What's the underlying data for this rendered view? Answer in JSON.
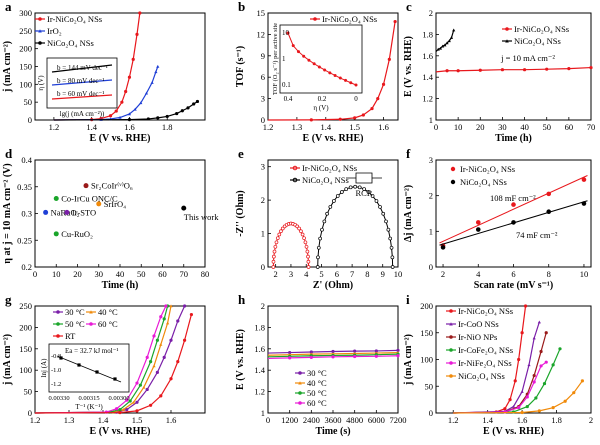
{
  "colors": {
    "red": "#e8171c",
    "blue": "#1f3fd6",
    "black": "#000000",
    "green": "#1aa52a",
    "purple": "#7a1fa8",
    "orange": "#f08a0a",
    "magenta": "#e81ad6",
    "darkred": "#9a1a1a"
  },
  "chart_data": [
    {
      "panel": "a",
      "type": "line",
      "xlabel": "E (V vs. RHE)",
      "ylabel": "j (mA cm⁻²)",
      "xlim": [
        1.1,
        2.0
      ],
      "ylim": [
        0,
        300
      ],
      "xticks": [
        1.2,
        1.4,
        1.6,
        1.8
      ],
      "yticks": [
        0,
        50,
        100,
        150,
        200,
        250,
        300
      ],
      "legend_position": "top-left",
      "series": [
        {
          "name": "Ir-NiCo₂O₄ NSs",
          "color": "red",
          "x": [
            1.2,
            1.4,
            1.45,
            1.5,
            1.53,
            1.56,
            1.58,
            1.6,
            1.62,
            1.64,
            1.655
          ],
          "y": [
            0,
            1,
            4,
            12,
            25,
            50,
            80,
            120,
            170,
            240,
            300
          ]
        },
        {
          "name": "IrO₂",
          "color": "blue",
          "x": [
            1.2,
            1.45,
            1.5,
            1.55,
            1.6,
            1.63,
            1.66,
            1.69,
            1.72,
            1.74,
            1.75
          ],
          "y": [
            0,
            1,
            3,
            7,
            17,
            30,
            48,
            75,
            105,
            135,
            150
          ]
        },
        {
          "name": "NiCo₂O₄ NSs",
          "color": "black",
          "x": [
            1.2,
            1.6,
            1.7,
            1.75,
            1.8,
            1.85,
            1.88,
            1.91,
            1.94,
            1.96
          ],
          "y": [
            0,
            1,
            3,
            6,
            10,
            18,
            26,
            34,
            45,
            52
          ]
        }
      ],
      "inset": {
        "xlabel": "lg(j (mA cm⁻²))",
        "ylabel": "η (V)",
        "annotations": [
          "b = 144 mV dec⁻¹",
          "b = 80 mV dec⁻¹",
          "b = 60 mV dec⁻¹"
        ]
      }
    },
    {
      "panel": "b",
      "type": "line",
      "xlabel": "E (V vs. RHE)",
      "ylabel": "TOF (s⁻¹)",
      "xlim": [
        1.2,
        1.65
      ],
      "ylim": [
        0,
        15
      ],
      "xticks": [
        1.2,
        1.3,
        1.4,
        1.5,
        1.6
      ],
      "yticks": [
        0,
        3,
        6,
        9,
        12,
        15
      ],
      "legend_position": "top-center",
      "series": [
        {
          "name": "Ir-NiCo₂O₄ NSs",
          "color": "red",
          "x": [
            1.2,
            1.35,
            1.45,
            1.5,
            1.53,
            1.56,
            1.58,
            1.6,
            1.62,
            1.64
          ],
          "y": [
            0,
            0.02,
            0.1,
            0.3,
            0.7,
            1.6,
            3,
            5,
            8.5,
            13.8
          ]
        }
      ],
      "inset": {
        "xlabel": "η (V)",
        "ylabel": "TOF (O₂ s⁻¹) per active site",
        "scale": "log",
        "xlim": [
          0.45,
          -0.02
        ],
        "xticks": [
          0.4,
          0.2,
          0.0
        ],
        "yticks": [
          "10",
          "1",
          "0.1"
        ]
      }
    },
    {
      "panel": "c",
      "type": "line",
      "xlabel": "Time (h)",
      "ylabel": "E (V vs. RHE)",
      "xlim": [
        0,
        70
      ],
      "ylim": [
        1.0,
        2.0
      ],
      "xticks": [
        0,
        10,
        20,
        30,
        40,
        50,
        60,
        70
      ],
      "yticks": [
        1.0,
        1.2,
        1.4,
        1.6,
        1.8,
        2.0
      ],
      "legend_position": "top-right",
      "annotation": "j = 10 mA cm⁻²",
      "series": [
        {
          "name": "Ir-NiCo₂O₄ NSs",
          "color": "red",
          "x": [
            0,
            5,
            10,
            20,
            30,
            40,
            50,
            60,
            70
          ],
          "y": [
            1.45,
            1.46,
            1.46,
            1.465,
            1.47,
            1.47,
            1.475,
            1.48,
            1.49
          ]
        },
        {
          "name": "NiCo₂O₄ NSs",
          "color": "black",
          "x": [
            0,
            1,
            2,
            3,
            4,
            5,
            6,
            7,
            8
          ],
          "y": [
            1.64,
            1.66,
            1.67,
            1.69,
            1.7,
            1.72,
            1.74,
            1.77,
            1.84
          ]
        }
      ]
    },
    {
      "panel": "d",
      "type": "scatter",
      "xlabel": "Time (h)",
      "ylabel": "η at j = 10 mA cm⁻² (V)",
      "xlim": [
        0,
        80
      ],
      "ylim": [
        0.2,
        0.4
      ],
      "xticks": [
        0,
        10,
        20,
        30,
        40,
        50,
        60,
        70,
        80
      ],
      "yticks": [
        0.2,
        0.25,
        0.3,
        0.35,
        0.4
      ],
      "points": [
        {
          "label": "Sr₂CoIr⁽ᵛ⁾O₆",
          "x": 24,
          "y": 0.352,
          "color": "darkred"
        },
        {
          "label": "Co-IrCu ONC/C",
          "x": 10,
          "y": 0.328,
          "color": "green"
        },
        {
          "label": "SrIrO₄",
          "x": 30,
          "y": 0.318,
          "color": "orange"
        },
        {
          "label": "NaRuO₂",
          "x": 5,
          "y": 0.302,
          "color": "blue"
        },
        {
          "label": "Ir-STO",
          "x": 15,
          "y": 0.302,
          "color": "purple"
        },
        {
          "label": "This work",
          "x": 70,
          "y": 0.31,
          "color": "black"
        },
        {
          "label": "Cu-RuO₂",
          "x": 10,
          "y": 0.262,
          "color": "green"
        }
      ]
    },
    {
      "panel": "e",
      "type": "scatter",
      "xlabel": "Z' (Ohm)",
      "ylabel": "-Z'' (Ohm)",
      "xlim": [
        1.5,
        10.0
      ],
      "ylim": [
        0,
        3.2
      ],
      "xticks": [
        2,
        3,
        4,
        5,
        6,
        7,
        8,
        9,
        10
      ],
      "yticks": [
        0,
        1,
        2,
        3
      ],
      "legend_position": "top-left",
      "circuit_label": "RCR",
      "series": [
        {
          "name": "Ir-NiCo₂O₄ NSs",
          "color": "red",
          "center": 3.0,
          "radius": 1.15,
          "peak": 1.3
        },
        {
          "name": "NiCo₂O₄ NSs",
          "color": "black",
          "center": 7.2,
          "radius": 2.45,
          "peak": 2.4
        }
      ]
    },
    {
      "panel": "f",
      "type": "scatter",
      "xlabel": "Scan rate (mV s⁻¹)",
      "ylabel": "Δj (mA cm⁻²)",
      "xlim": [
        1.6,
        10.4
      ],
      "ylim": [
        0,
        3.0
      ],
      "xticks": [
        2,
        4,
        6,
        8,
        10
      ],
      "yticks": [
        0,
        1,
        2,
        3
      ],
      "legend_position": "top-left",
      "series": [
        {
          "name": "Ir-NiCo₂O₄ NSs",
          "color": "red",
          "x": [
            2,
            4,
            6,
            8,
            10
          ],
          "y": [
            0.6,
            1.25,
            1.75,
            2.05,
            2.45
          ],
          "slope_label": "108 mF cm⁻²"
        },
        {
          "name": "NiCo₂O₄ NSs",
          "color": "black",
          "x": [
            2,
            4,
            6,
            8,
            10
          ],
          "y": [
            0.55,
            1.05,
            1.25,
            1.55,
            1.78
          ],
          "slope_label": "74 mF cm⁻²"
        }
      ]
    },
    {
      "panel": "g",
      "type": "line",
      "xlabel": "E (V vs. RHE)",
      "ylabel": "j (mA cm⁻²)",
      "xlim": [
        1.2,
        1.7
      ],
      "ylim": [
        0,
        250
      ],
      "xticks": [
        1.2,
        1.3,
        1.4,
        1.5,
        1.6
      ],
      "yticks": [
        0,
        50,
        100,
        150,
        200,
        250
      ],
      "legend_position": "top-left",
      "series": [
        {
          "name": "30 °C",
          "color": "purple",
          "x": [
            1.2,
            1.44,
            1.47,
            1.5,
            1.53,
            1.56,
            1.58,
            1.6,
            1.62,
            1.64
          ],
          "y": [
            0,
            2,
            8,
            25,
            55,
            95,
            130,
            170,
            215,
            250
          ]
        },
        {
          "name": "40 °C",
          "color": "orange",
          "x": [
            1.2,
            1.43,
            1.46,
            1.49,
            1.52,
            1.55,
            1.57,
            1.59,
            1.6
          ],
          "y": [
            0,
            2,
            8,
            25,
            60,
            110,
            160,
            210,
            250
          ]
        },
        {
          "name": "50 °C",
          "color": "green",
          "x": [
            1.2,
            1.42,
            1.45,
            1.48,
            1.51,
            1.54,
            1.56,
            1.58,
            1.59
          ],
          "y": [
            0,
            2,
            8,
            28,
            65,
            120,
            170,
            220,
            250
          ]
        },
        {
          "name": "60 °C",
          "color": "magenta",
          "x": [
            1.2,
            1.41,
            1.44,
            1.47,
            1.5,
            1.53,
            1.55,
            1.57,
            1.585
          ],
          "y": [
            0,
            2,
            10,
            30,
            70,
            130,
            180,
            225,
            250
          ]
        },
        {
          "name": "RT",
          "color": "red",
          "x": [
            1.2,
            1.45,
            1.5,
            1.54,
            1.57,
            1.6,
            1.62,
            1.64,
            1.66
          ],
          "y": [
            0,
            1,
            5,
            18,
            40,
            80,
            120,
            170,
            230
          ]
        }
      ],
      "inset": {
        "xlabel": "T⁻¹ (K⁻¹)",
        "ylabel": "lnj (A)",
        "annotation": "Ea = 32.7 kJ mol⁻¹",
        "xticks": [
          "0.00330",
          "0.00315",
          "0.00300"
        ],
        "yticks": [
          "-0.8",
          "-1.0",
          "-1.2"
        ]
      }
    },
    {
      "panel": "h",
      "type": "line",
      "xlabel": "Time (s)",
      "ylabel": "E (V vs. RHE)",
      "xlim": [
        0,
        7200
      ],
      "ylim": [
        1.0,
        2.0
      ],
      "xticks": [
        0,
        1200,
        2400,
        3600,
        4800,
        6000,
        7200
      ],
      "yticks": [
        1.0,
        1.2,
        1.4,
        1.6,
        1.8,
        2.0
      ],
      "legend_position": "bottom-left",
      "series": [
        {
          "name": "30 °C",
          "color": "purple",
          "x": [
            0,
            1200,
            2400,
            3600,
            4800,
            6000,
            7200
          ],
          "y": [
            1.56,
            1.565,
            1.57,
            1.575,
            1.578,
            1.58,
            1.585
          ]
        },
        {
          "name": "40 °C",
          "color": "orange",
          "x": [
            0,
            1200,
            2400,
            3600,
            4800,
            6000,
            7200
          ],
          "y": [
            1.54,
            1.545,
            1.55,
            1.553,
            1.556,
            1.56,
            1.565
          ]
        },
        {
          "name": "50 °C",
          "color": "green",
          "x": [
            0,
            1200,
            2400,
            3600,
            4800,
            6000,
            7200
          ],
          "y": [
            1.525,
            1.53,
            1.535,
            1.538,
            1.54,
            1.545,
            1.55
          ]
        },
        {
          "name": "60 °C",
          "color": "magenta",
          "x": [
            0,
            1200,
            2400,
            3600,
            4800,
            6000,
            7200
          ],
          "y": [
            1.51,
            1.515,
            1.52,
            1.525,
            1.528,
            1.53,
            1.535
          ]
        }
      ]
    },
    {
      "panel": "i",
      "type": "line",
      "xlabel": "E (V vs. RHE)",
      "ylabel": "j (mA cm⁻²)",
      "xlim": [
        1.1,
        2.0
      ],
      "ylim": [
        0,
        200
      ],
      "xticks": [
        1.2,
        1.4,
        1.6,
        1.8,
        2.0
      ],
      "yticks": [
        0,
        50,
        100,
        150,
        200
      ],
      "legend_position": "top-left",
      "series": [
        {
          "name": "Ir-NiCo₂O₄ NSs",
          "color": "red",
          "x": [
            1.2,
            1.45,
            1.5,
            1.53,
            1.56,
            1.58,
            1.6,
            1.62
          ],
          "y": [
            0,
            2,
            8,
            25,
            60,
            100,
            150,
            200
          ]
        },
        {
          "name": "Ir-CoO NSs",
          "color": "purple",
          "x": [
            1.2,
            1.5,
            1.55,
            1.6,
            1.64,
            1.67,
            1.7
          ],
          "y": [
            0,
            3,
            12,
            40,
            90,
            140,
            170
          ]
        },
        {
          "name": "Ir-NiO NPs",
          "color": "darkred",
          "x": [
            1.2,
            1.5,
            1.58,
            1.63,
            1.67,
            1.71,
            1.74
          ],
          "y": [
            0,
            2,
            12,
            35,
            70,
            115,
            150
          ]
        },
        {
          "name": "Ir-CoFe₂O₄ NSs",
          "color": "green",
          "x": [
            1.2,
            1.55,
            1.63,
            1.68,
            1.73,
            1.78,
            1.82
          ],
          "y": [
            0,
            2,
            12,
            28,
            55,
            90,
            120
          ]
        },
        {
          "name": "Ir-NiFe₂O₄ NSs",
          "color": "magenta",
          "x": [
            1.2,
            1.5,
            1.58,
            1.63,
            1.67,
            1.71,
            1.74
          ],
          "y": [
            0,
            2,
            10,
            30,
            58,
            88,
            95
          ]
        },
        {
          "name": "NiCo₂O₄ NSs",
          "color": "orange",
          "x": [
            1.2,
            1.6,
            1.7,
            1.78,
            1.85,
            1.9,
            1.95
          ],
          "y": [
            0,
            1,
            4,
            10,
            22,
            38,
            60
          ]
        }
      ]
    }
  ]
}
